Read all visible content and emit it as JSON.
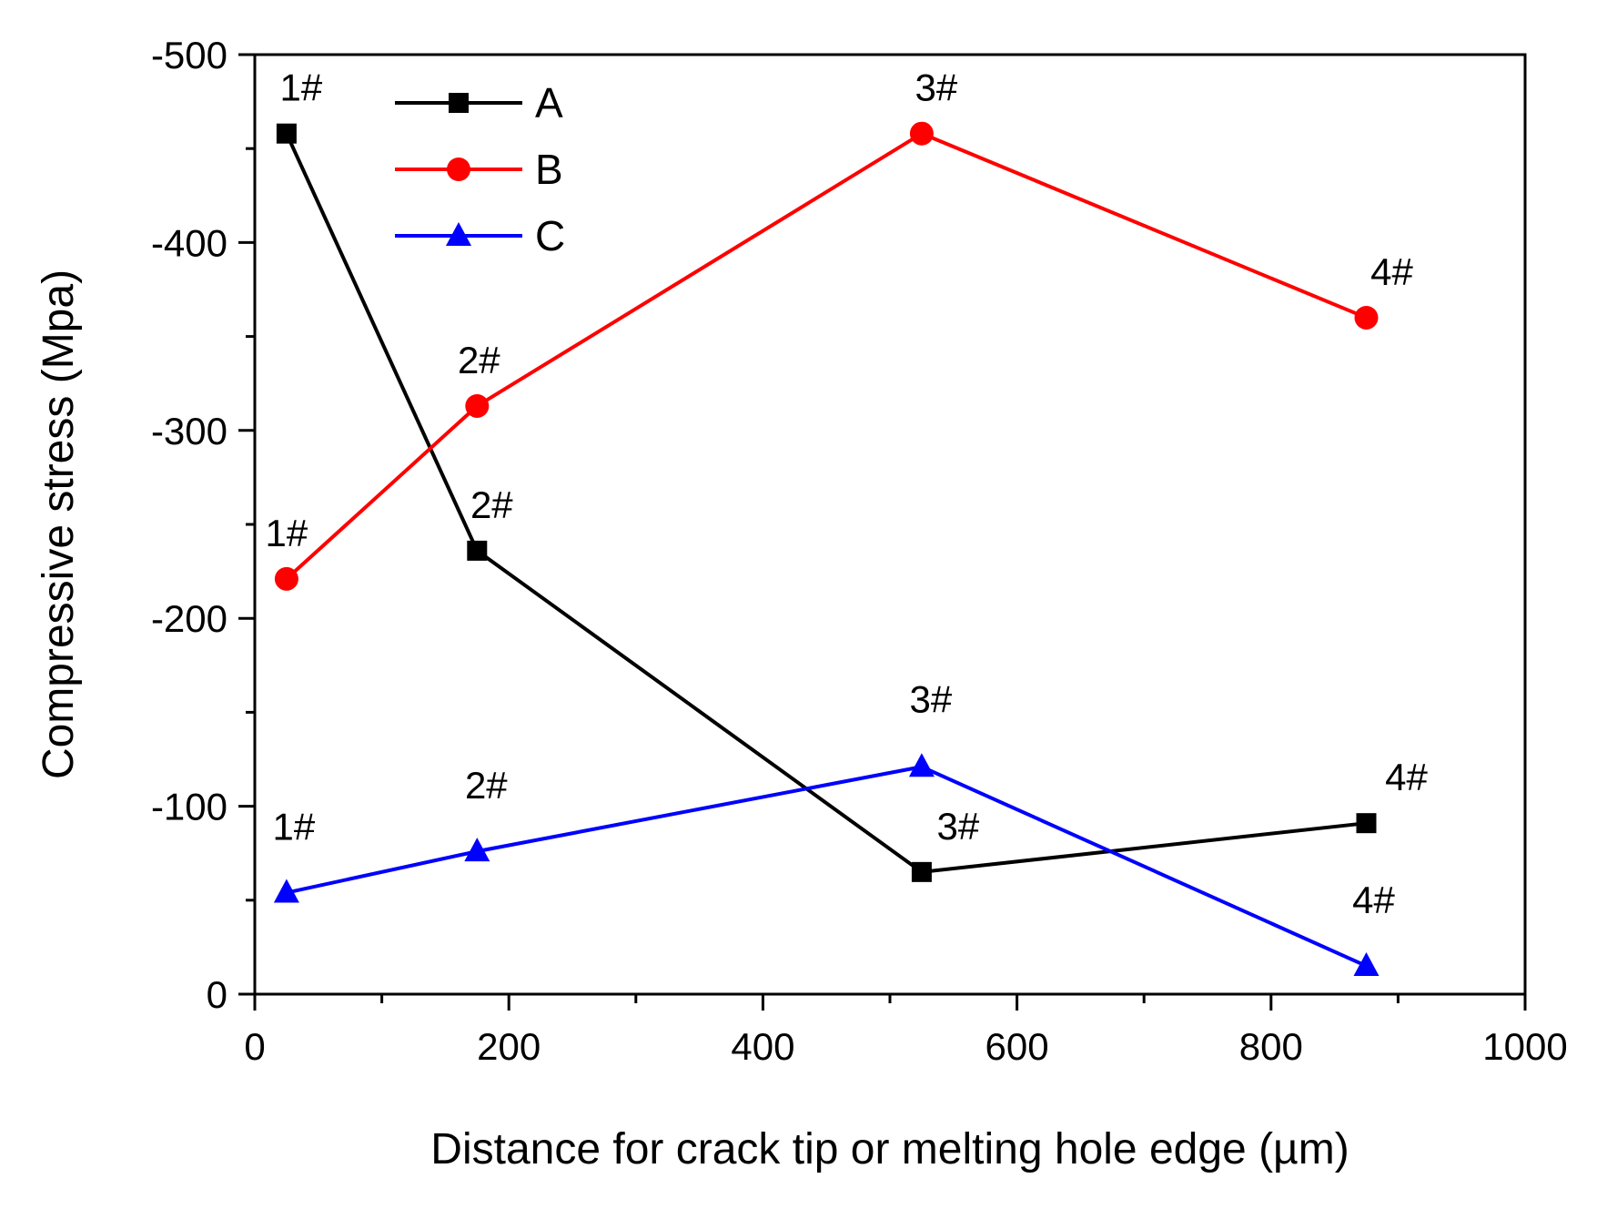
{
  "chart_data": {
    "type": "line",
    "title": "",
    "xlabel": "Distance for crack tip or melting hole edge (µm)",
    "ylabel": "Compressive stress (Mpa)",
    "xlim": [
      0,
      1000
    ],
    "ylim": [
      0,
      -500
    ],
    "x_ticks": [
      0,
      200,
      400,
      600,
      800,
      1000
    ],
    "x_tick_labels": [
      "0",
      "200",
      "400",
      "600",
      "800",
      "1000"
    ],
    "y_ticks": [
      0,
      -100,
      -200,
      -300,
      -400,
      -500
    ],
    "y_tick_labels": [
      "0",
      "-100",
      "-200",
      "-300",
      "-400",
      "-500"
    ],
    "legend_position": "top-left",
    "series": [
      {
        "name": "A",
        "color": "#000000",
        "marker": "square",
        "x": [
          25,
          175,
          525,
          875
        ],
        "y": [
          -458,
          -236,
          -65,
          -91
        ],
        "labels": [
          "1#",
          "2#",
          "3#",
          "4#"
        ]
      },
      {
        "name": "B",
        "color": "#ff0000",
        "marker": "circle",
        "x": [
          25,
          175,
          525,
          875
        ],
        "y": [
          -221,
          -313,
          -458,
          -360
        ],
        "labels": [
          "1#",
          "2#",
          "3#",
          "4#"
        ]
      },
      {
        "name": "C",
        "color": "#0000ff",
        "marker": "triangle",
        "x": [
          25,
          175,
          525,
          875
        ],
        "y": [
          -54,
          -76,
          -121,
          -15
        ],
        "labels": [
          "1#",
          "2#",
          "3#",
          "4#"
        ]
      }
    ]
  }
}
